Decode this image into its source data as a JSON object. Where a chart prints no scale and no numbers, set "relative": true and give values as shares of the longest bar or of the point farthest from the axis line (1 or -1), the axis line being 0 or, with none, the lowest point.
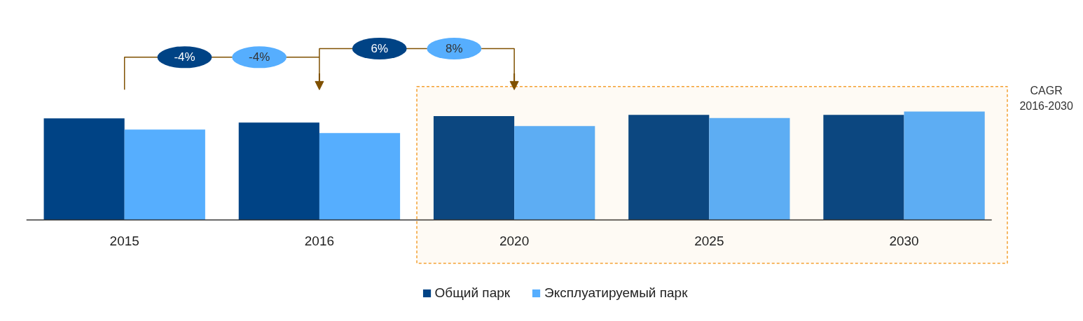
{
  "chart_data": {
    "type": "bar",
    "relative": true,
    "categories": [
      "2015",
      "2016",
      "2020",
      "2025",
      "2030"
    ],
    "series": [
      {
        "name": "Общий парк",
        "color": "#004385",
        "values": [
          0.936,
          0.897,
          0.958,
          0.968,
          0.968
        ]
      },
      {
        "name": "Эксплуатируемый парк",
        "color": "#56aefe",
        "values": [
          0.833,
          0.801,
          0.865,
          0.939,
          1.0
        ]
      }
    ],
    "annotations": [
      "-4%",
      "-4%",
      "6%",
      "8%",
      "CAGR 2016-2030"
    ],
    "bands": [
      {
        "axis": "x",
        "from": "2020",
        "to": "2030",
        "color": "#f4a030"
      }
    ],
    "legend": "bottom",
    "grid": false
  }
}
